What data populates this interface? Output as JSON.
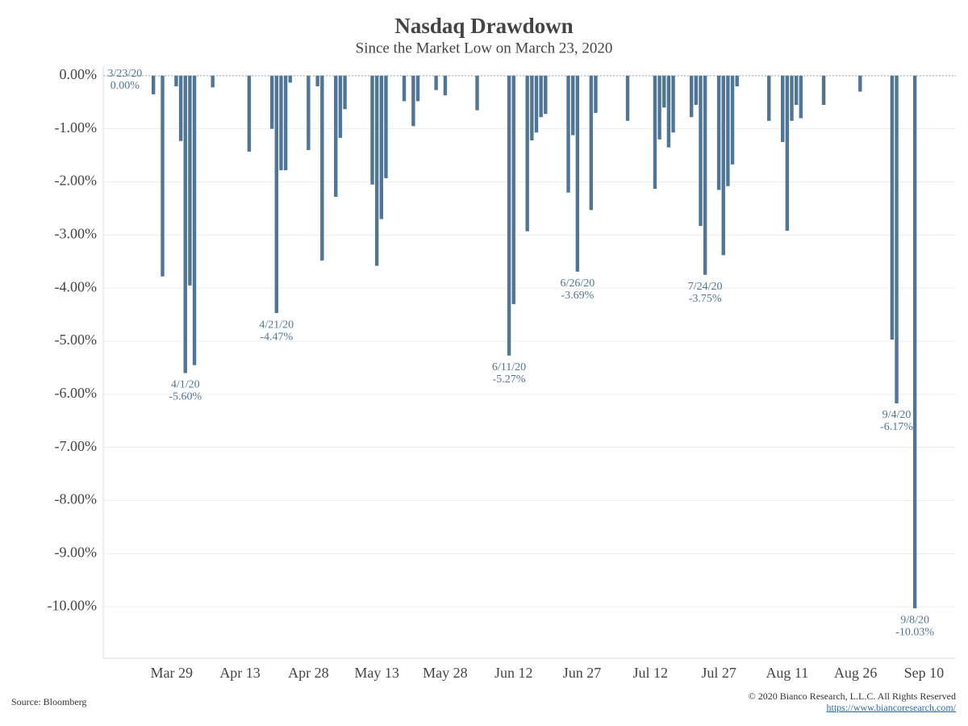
{
  "chart_data": {
    "type": "bar",
    "title": "Nasdaq Drawdown",
    "subtitle": "Since the Market Low on March 23, 2020",
    "color": "#4f7597",
    "grid": true,
    "x": [
      "Mar 23",
      "Mar 24",
      "Mar 25",
      "Mar 26",
      "Mar 27",
      "Mar 30",
      "Mar 31",
      "Apr 1",
      "Apr 2",
      "Apr 3",
      "Apr 6",
      "Apr 7",
      "Apr 8",
      "Apr 9",
      "Apr 13",
      "Apr 14",
      "Apr 15",
      "Apr 16",
      "Apr 17",
      "Apr 20",
      "Apr 21",
      "Apr 22",
      "Apr 23",
      "Apr 24",
      "Apr 27",
      "Apr 28",
      "Apr 29",
      "Apr 30",
      "May 1",
      "May 4",
      "May 5",
      "May 6",
      "May 7",
      "May 8",
      "May 11",
      "May 12",
      "May 13",
      "May 14",
      "May 15",
      "May 18",
      "May 19",
      "May 20",
      "May 21",
      "May 22",
      "May 26",
      "May 27",
      "May 28",
      "May 29",
      "Jun 1",
      "Jun 2",
      "Jun 3",
      "Jun 4",
      "Jun 5",
      "Jun 8",
      "Jun 9",
      "Jun 10",
      "Jun 11",
      "Jun 12",
      "Jun 15",
      "Jun 16",
      "Jun 17",
      "Jun 18",
      "Jun 19",
      "Jun 22",
      "Jun 23",
      "Jun 24",
      "Jun 25",
      "Jun 26",
      "Jun 29",
      "Jun 30",
      "Jul 1",
      "Jul 2",
      "Jul 6",
      "Jul 7",
      "Jul 8",
      "Jul 9",
      "Jul 10",
      "Jul 13",
      "Jul 14",
      "Jul 15",
      "Jul 16",
      "Jul 17",
      "Jul 20",
      "Jul 21",
      "Jul 22",
      "Jul 23",
      "Jul 24",
      "Jul 27",
      "Jul 28",
      "Jul 29",
      "Jul 30",
      "Jul 31",
      "Aug 3",
      "Aug 4",
      "Aug 5",
      "Aug 6",
      "Aug 7",
      "Aug 10",
      "Aug 11",
      "Aug 12",
      "Aug 13",
      "Aug 14",
      "Aug 17",
      "Aug 18",
      "Aug 19",
      "Aug 20",
      "Aug 21",
      "Aug 24",
      "Aug 25",
      "Aug 26",
      "Aug 27",
      "Aug 28",
      "Aug 31",
      "Sep 1",
      "Sep 2",
      "Sep 3",
      "Sep 4",
      "Sep 8"
    ],
    "values": [
      0,
      0,
      -0.35,
      0,
      -3.78,
      -0.2,
      -1.23,
      -5.6,
      -3.95,
      -5.45,
      0,
      -0.22,
      0,
      0,
      0,
      0,
      -1.43,
      0,
      0,
      -1.0,
      -4.47,
      -1.78,
      -1.78,
      -0.13,
      0,
      -1.4,
      0,
      -0.2,
      -3.48,
      -2.28,
      -1.17,
      -0.63,
      0,
      0,
      0,
      -2.05,
      -3.58,
      -2.7,
      -1.93,
      0,
      -0.48,
      0,
      -0.95,
      -0.48,
      -0.27,
      0,
      -0.37,
      0,
      0,
      0,
      0,
      -0.65,
      0,
      0,
      0,
      0,
      -5.27,
      -4.3,
      -2.93,
      -1.22,
      -1.07,
      -0.78,
      -0.72,
      0,
      0,
      -2.2,
      -1.12,
      -3.69,
      -2.53,
      -0.7,
      0,
      0,
      0,
      -0.85,
      0,
      0,
      0,
      -2.13,
      -1.2,
      -0.6,
      -1.35,
      -1.07,
      0,
      -0.78,
      -0.55,
      -2.83,
      -3.75,
      -2.15,
      -3.38,
      -2.08,
      -1.67,
      -0.2,
      0,
      0,
      0,
      0,
      -0.85,
      -1.25,
      -2.92,
      -0.85,
      -0.55,
      -0.8,
      0,
      0,
      -0.55,
      0,
      0,
      0,
      0,
      0,
      -0.3,
      0,
      0,
      0,
      0,
      -4.97,
      -6.17,
      -10.03
    ],
    "xlim": [
      "Mar 14",
      "Sep 17"
    ],
    "xticks": [
      "Mar 29",
      "Apr 13",
      "Apr 28",
      "May 13",
      "May 28",
      "Jun 12",
      "Jun 27",
      "Jul 12",
      "Jul 27",
      "Aug 11",
      "Aug 26",
      "Sep 10"
    ],
    "ylim": [
      -10.97,
      0.18
    ],
    "yticks": [
      {
        "value": 0,
        "label": "0.00%"
      },
      {
        "value": -1,
        "label": "-1.00%"
      },
      {
        "value": -2,
        "label": "-2.00%"
      },
      {
        "value": -3,
        "label": "-3.00%"
      },
      {
        "value": -4,
        "label": "-4.00%"
      },
      {
        "value": -5,
        "label": "-5.00%"
      },
      {
        "value": -6,
        "label": "-6.00%"
      },
      {
        "value": -7,
        "label": "-7.00%"
      },
      {
        "value": -8,
        "label": "-8.00%"
      },
      {
        "value": -9,
        "label": "-9.00%"
      },
      {
        "value": -10,
        "label": "-10.00%"
      }
    ],
    "annotations": [
      {
        "x": "Mar 23",
        "date": "3/23/20",
        "value": "0.00%"
      },
      {
        "x": "Apr 1",
        "date": "4/1/20",
        "value": "-5.60%"
      },
      {
        "x": "Apr 21",
        "date": "4/21/20",
        "value": "-4.47%"
      },
      {
        "x": "Jun 11",
        "date": "6/11/20",
        "value": "-5.27%"
      },
      {
        "x": "Jun 26",
        "date": "6/26/20",
        "value": "-3.69%"
      },
      {
        "x": "Jul 24",
        "date": "7/24/20",
        "value": "-3.75%"
      },
      {
        "x": "Sep 4",
        "date": "9/4/20",
        "value": "-6.17%"
      },
      {
        "x": "Sep 8",
        "date": "9/8/20",
        "value": "-10.03%"
      }
    ],
    "source": "Source: Bloomberg",
    "copyright": "© 2020 Bianco Research, L.L.C. All Rights Reserved",
    "url": "https://www.biancoresearch.com/"
  }
}
